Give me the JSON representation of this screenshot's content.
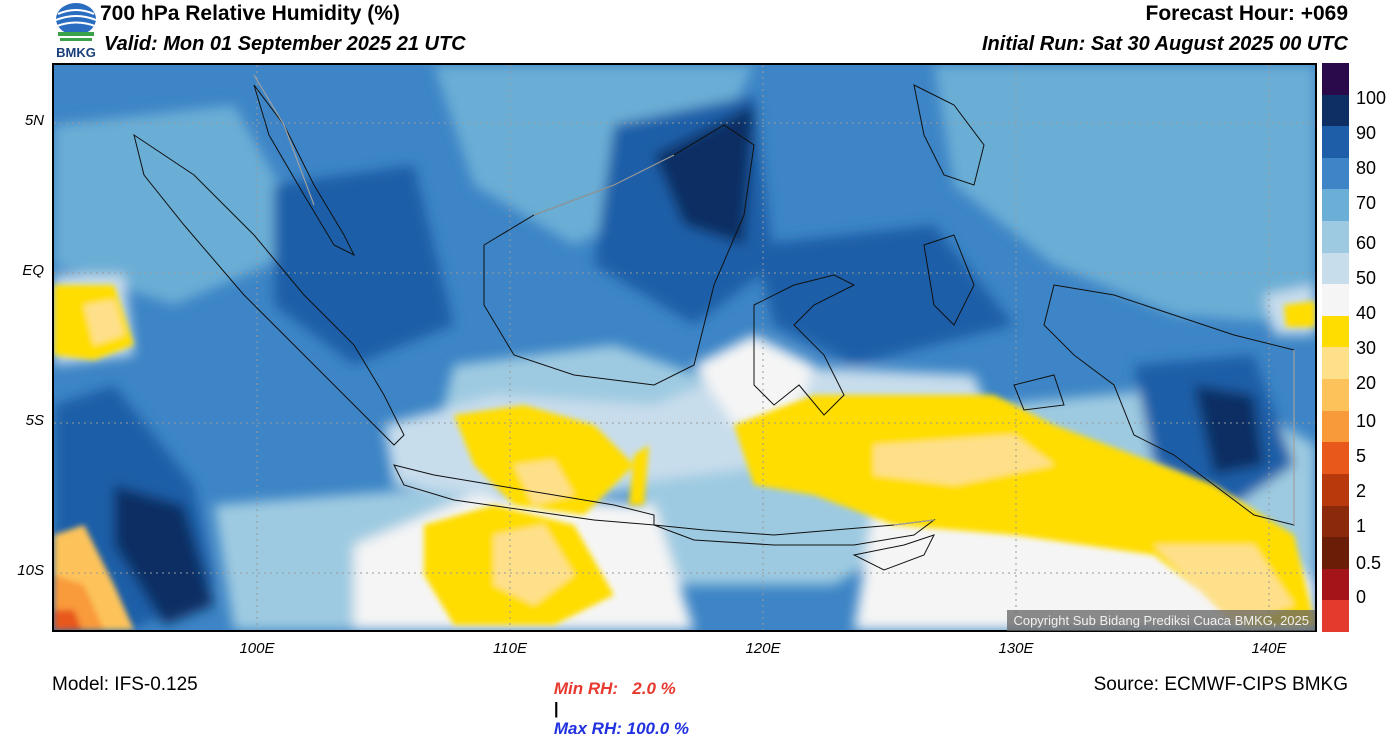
{
  "header": {
    "title": "700 hPa Relative Humidity (%)",
    "valid": "Valid: Mon 01 September 2025 21 UTC",
    "forecast_hour": "Forecast Hour: +069",
    "initial_run": "Initial Run: Sat 30 August 2025 00 UTC"
  },
  "logo": {
    "text": "BMKG"
  },
  "map": {
    "lat_labels": [
      "5N",
      "EQ",
      "5S",
      "10S"
    ],
    "lon_labels": [
      "100E",
      "110E",
      "120E",
      "130E",
      "140E"
    ],
    "copyright": "Copyright Sub Bidang Prediksi Cuaca BMKG, 2025"
  },
  "colorbar": {
    "labels": [
      "100",
      "90",
      "80",
      "70",
      "60",
      "50",
      "40",
      "30",
      "20",
      "10",
      "5",
      "2",
      "1",
      "0.5",
      "0"
    ],
    "colors": [
      "#2a0a4a",
      "#0d2f63",
      "#1e5ea8",
      "#3d85c6",
      "#6baed6",
      "#9ecae1",
      "#c8ddec",
      "#f5f5f5",
      "#ffdd00",
      "#fee08b",
      "#fdc35a",
      "#f99a3a",
      "#e8581b",
      "#b83a0c",
      "#8a2a0a",
      "#6a1e08",
      "#a41418",
      "#e23b2e"
    ]
  },
  "stats": {
    "min_rh": "Min RH:   2.0 %",
    "separator": "|",
    "max_rh": "Max RH: 100.0 %"
  },
  "footer": {
    "model": "Model: IFS-0.125",
    "source": "Source: ECMWF-CIPS BMKG"
  }
}
